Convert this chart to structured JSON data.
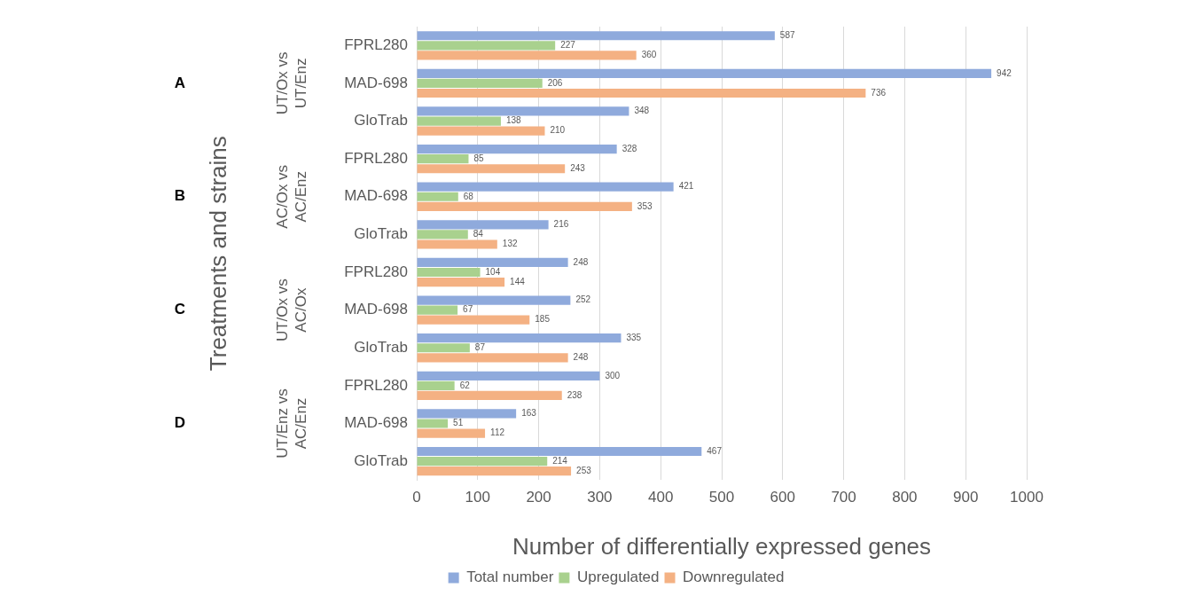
{
  "chart_data": {
    "type": "bar",
    "orientation": "horizontal",
    "xlabel": "Number of differentially expressed genes",
    "ylabel": "Treatments and strains",
    "categories": [
      "FPRL280",
      "MAD-698",
      "GloTrab",
      "FPRL280",
      "MAD-698",
      "GloTrab",
      "FPRL280",
      "MAD-698",
      "GloTrab",
      "FPRL280",
      "MAD-698",
      "GloTrab"
    ],
    "series": [
      {
        "name": "Total number",
        "color": "#8faadc",
        "values": [
          587,
          942,
          348,
          328,
          421,
          216,
          248,
          252,
          335,
          300,
          163,
          467
        ]
      },
      {
        "name": "Upregulated",
        "color": "#a9d18e",
        "values": [
          227,
          206,
          138,
          85,
          68,
          84,
          104,
          67,
          87,
          62,
          51,
          214
        ]
      },
      {
        "name": "Downregulated",
        "color": "#f4b183",
        "values": [
          360,
          736,
          210,
          243,
          353,
          132,
          144,
          185,
          248,
          238,
          112,
          253
        ]
      }
    ],
    "xlim": [
      0,
      1000
    ],
    "xticks": [
      0,
      100,
      200,
      300,
      400,
      500,
      600,
      700,
      800,
      900,
      1000
    ],
    "annotations": [
      "A",
      "UT/Ox vs UT/Enz",
      "B",
      "AC/Ox vs AC/Enz",
      "C",
      "UT/Ox vs AC/Ox",
      "D",
      "UT/Enz vs AC/Enz"
    ],
    "grid": "x",
    "legend": "bottom",
    "data_labels": true
  }
}
